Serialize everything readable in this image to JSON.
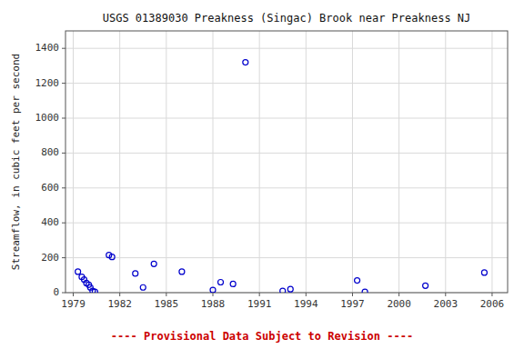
{
  "chart_data": {
    "type": "scatter",
    "title": "USGS 01389030 Preakness (Singac) Brook near Preakness NJ",
    "y_label": "Streamflow, in cubic feet per second",
    "annotations": [
      {
        "text": "---- Provisional Data Subject to Revision ----",
        "color": "#cc0000"
      }
    ],
    "x": [
      1979.3,
      1979.55,
      1979.7,
      1979.85,
      1980.0,
      1980.1,
      1980.25,
      1980.4,
      1981.3,
      1981.5,
      1983.0,
      1983.5,
      1984.2,
      1986.0,
      1988.0,
      1988.5,
      1989.3,
      1990.1,
      1992.5,
      1993.0,
      1997.3,
      1997.8,
      2001.7,
      2005.5
    ],
    "values": [
      120,
      90,
      75,
      55,
      45,
      30,
      10,
      5,
      215,
      205,
      110,
      30,
      165,
      120,
      15,
      60,
      50,
      1320,
      10,
      20,
      70,
      5,
      40,
      115
    ],
    "color": "#0000cc",
    "marker": "open-circle",
    "xlim": [
      1978.5,
      2007
    ],
    "ylim": [
      0,
      1500
    ],
    "xticks": [
      1979,
      1982,
      1985,
      1988,
      1991,
      1994,
      1997,
      2000,
      2003,
      2006
    ],
    "yticks": [
      0,
      200,
      400,
      600,
      800,
      1000,
      1200,
      1400
    ],
    "grid": true
  }
}
